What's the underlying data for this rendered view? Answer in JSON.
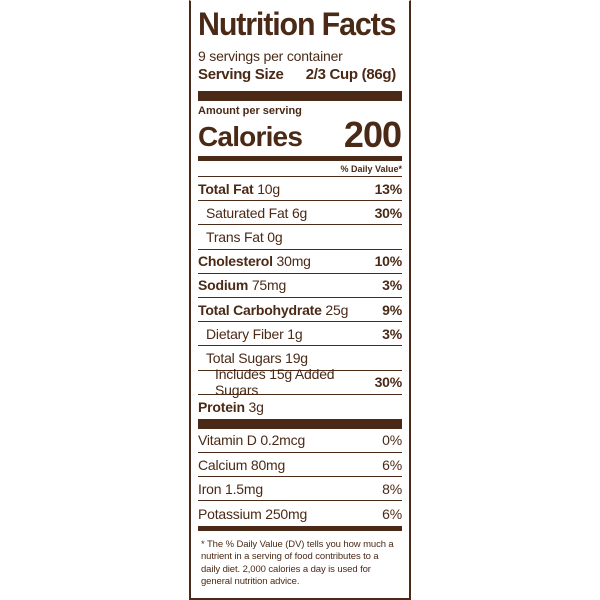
{
  "label": {
    "title": "Nutrition Facts",
    "servings_per_container": "9 servings per container",
    "serving_size_label": "Serving Size",
    "serving_size_value": "2/3 Cup (86g)",
    "amount_per_serving": "Amount per serving",
    "calories_label": "Calories",
    "calories_value": "200",
    "daily_value_header": "% Daily Value*",
    "nutrients": [
      {
        "name": "Total Fat",
        "amount": "10g",
        "dv": "13%"
      },
      {
        "name": "Saturated Fat",
        "amount": "6g",
        "dv": "30%"
      },
      {
        "name": "Trans Fat",
        "amount": "0g",
        "dv": ""
      },
      {
        "name": "Cholesterol",
        "amount": "30mg",
        "dv": "10%"
      },
      {
        "name": "Sodium",
        "amount": "75mg",
        "dv": "3%"
      },
      {
        "name": "Total Carbohydrate",
        "amount": "25g",
        "dv": "9%"
      },
      {
        "name": "Dietary Fiber",
        "amount": "1g",
        "dv": "3%"
      },
      {
        "name": "Total Sugars",
        "amount": "19g",
        "dv": ""
      },
      {
        "name": "Includes 15g Added Sugars",
        "amount": "",
        "dv": "30%"
      },
      {
        "name": "Protein",
        "amount": "3g",
        "dv": ""
      }
    ],
    "vitamins": [
      {
        "text": "Vitamin D 0.2mcg",
        "dv": "0%"
      },
      {
        "text": "Calcium 80mg",
        "dv": "6%"
      },
      {
        "text": "Iron 1.5mg",
        "dv": "8%"
      },
      {
        "text": "Potassium 250mg",
        "dv": "6%"
      }
    ],
    "footnote": "* The % Daily Value (DV) tells you how much a nutrient in a serving of food contributes to a daily diet. 2,000 calories a day is used for general nutrition advice.",
    "colors": {
      "ink": "#4a2a17",
      "background": "#ffffff"
    }
  }
}
